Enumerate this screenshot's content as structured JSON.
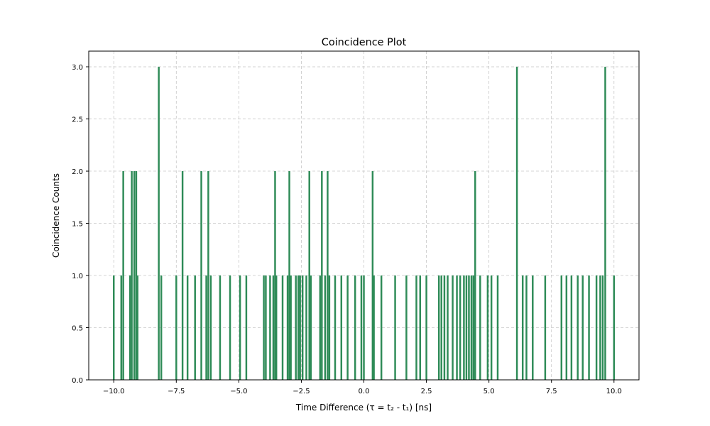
{
  "chart_data": {
    "type": "bar",
    "title": "Coincidence Plot",
    "xlabel": "Time Difference (τ = t₂ - t₁) [ns]",
    "ylabel": "Coincidence Counts",
    "xlim": [
      -11.0,
      11.0
    ],
    "ylim": [
      0,
      3.15
    ],
    "xticks": [
      -10.0,
      -7.5,
      -5.0,
      -2.5,
      0.0,
      2.5,
      5.0,
      7.5,
      10.0
    ],
    "xtick_labels": [
      "−10.0",
      "−7.5",
      "−5.0",
      "−2.5",
      "0.0",
      "2.5",
      "5.0",
      "7.5",
      "10.0"
    ],
    "yticks": [
      0.0,
      0.5,
      1.0,
      1.5,
      2.0,
      2.5,
      3.0
    ],
    "ytick_labels": [
      "0.0",
      "0.5",
      "1.0",
      "1.5",
      "2.0",
      "2.5",
      "3.0"
    ],
    "grid": true,
    "bar_color": "#2e8b57",
    "bar_width": 0.07,
    "bars": [
      {
        "x": -10.0,
        "y": 1
      },
      {
        "x": -9.7,
        "y": 1
      },
      {
        "x": -9.62,
        "y": 2
      },
      {
        "x": -9.35,
        "y": 1
      },
      {
        "x": -9.28,
        "y": 2
      },
      {
        "x": -9.18,
        "y": 2
      },
      {
        "x": -9.1,
        "y": 2
      },
      {
        "x": -9.05,
        "y": 1
      },
      {
        "x": -8.2,
        "y": 3
      },
      {
        "x": -8.1,
        "y": 1
      },
      {
        "x": -7.5,
        "y": 1
      },
      {
        "x": -7.25,
        "y": 2
      },
      {
        "x": -7.05,
        "y": 1
      },
      {
        "x": -6.75,
        "y": 1
      },
      {
        "x": -6.5,
        "y": 2
      },
      {
        "x": -6.3,
        "y": 1
      },
      {
        "x": -6.22,
        "y": 2
      },
      {
        "x": -6.12,
        "y": 1
      },
      {
        "x": -5.75,
        "y": 1
      },
      {
        "x": -5.35,
        "y": 1
      },
      {
        "x": -4.95,
        "y": 1
      },
      {
        "x": -4.7,
        "y": 1
      },
      {
        "x": -4.0,
        "y": 1
      },
      {
        "x": -3.92,
        "y": 1
      },
      {
        "x": -3.75,
        "y": 1
      },
      {
        "x": -3.62,
        "y": 1
      },
      {
        "x": -3.55,
        "y": 2
      },
      {
        "x": -3.5,
        "y": 1
      },
      {
        "x": -3.25,
        "y": 1
      },
      {
        "x": -3.05,
        "y": 1
      },
      {
        "x": -2.98,
        "y": 2
      },
      {
        "x": -2.92,
        "y": 1
      },
      {
        "x": -2.72,
        "y": 1
      },
      {
        "x": -2.62,
        "y": 1
      },
      {
        "x": -2.55,
        "y": 1
      },
      {
        "x": -2.45,
        "y": 1
      },
      {
        "x": -2.3,
        "y": 1
      },
      {
        "x": -2.18,
        "y": 2
      },
      {
        "x": -2.12,
        "y": 1
      },
      {
        "x": -1.75,
        "y": 1
      },
      {
        "x": -1.68,
        "y": 2
      },
      {
        "x": -1.55,
        "y": 1
      },
      {
        "x": -1.45,
        "y": 2
      },
      {
        "x": -1.38,
        "y": 1
      },
      {
        "x": -1.15,
        "y": 1
      },
      {
        "x": -0.9,
        "y": 1
      },
      {
        "x": -0.65,
        "y": 1
      },
      {
        "x": -0.35,
        "y": 1
      },
      {
        "x": -0.1,
        "y": 1
      },
      {
        "x": 0.0,
        "y": 1
      },
      {
        "x": 0.35,
        "y": 2
      },
      {
        "x": 0.4,
        "y": 1
      },
      {
        "x": 0.7,
        "y": 1
      },
      {
        "x": 1.25,
        "y": 1
      },
      {
        "x": 1.7,
        "y": 1
      },
      {
        "x": 2.1,
        "y": 1
      },
      {
        "x": 2.25,
        "y": 1
      },
      {
        "x": 2.5,
        "y": 1
      },
      {
        "x": 3.0,
        "y": 1
      },
      {
        "x": 3.1,
        "y": 1
      },
      {
        "x": 3.22,
        "y": 1
      },
      {
        "x": 3.35,
        "y": 1
      },
      {
        "x": 3.55,
        "y": 1
      },
      {
        "x": 3.72,
        "y": 1
      },
      {
        "x": 3.85,
        "y": 1
      },
      {
        "x": 4.0,
        "y": 1
      },
      {
        "x": 4.1,
        "y": 1
      },
      {
        "x": 4.2,
        "y": 1
      },
      {
        "x": 4.3,
        "y": 1
      },
      {
        "x": 4.38,
        "y": 1
      },
      {
        "x": 4.45,
        "y": 2
      },
      {
        "x": 4.65,
        "y": 1
      },
      {
        "x": 4.95,
        "y": 1
      },
      {
        "x": 5.1,
        "y": 1
      },
      {
        "x": 5.35,
        "y": 1
      },
      {
        "x": 6.12,
        "y": 3
      },
      {
        "x": 6.35,
        "y": 1
      },
      {
        "x": 6.5,
        "y": 1
      },
      {
        "x": 6.75,
        "y": 1
      },
      {
        "x": 7.25,
        "y": 1
      },
      {
        "x": 7.9,
        "y": 1
      },
      {
        "x": 8.1,
        "y": 1
      },
      {
        "x": 8.3,
        "y": 1
      },
      {
        "x": 8.55,
        "y": 1
      },
      {
        "x": 8.75,
        "y": 1
      },
      {
        "x": 9.0,
        "y": 1
      },
      {
        "x": 9.3,
        "y": 1
      },
      {
        "x": 9.45,
        "y": 1
      },
      {
        "x": 9.55,
        "y": 1
      },
      {
        "x": 9.65,
        "y": 3
      },
      {
        "x": 10.0,
        "y": 1
      }
    ]
  }
}
